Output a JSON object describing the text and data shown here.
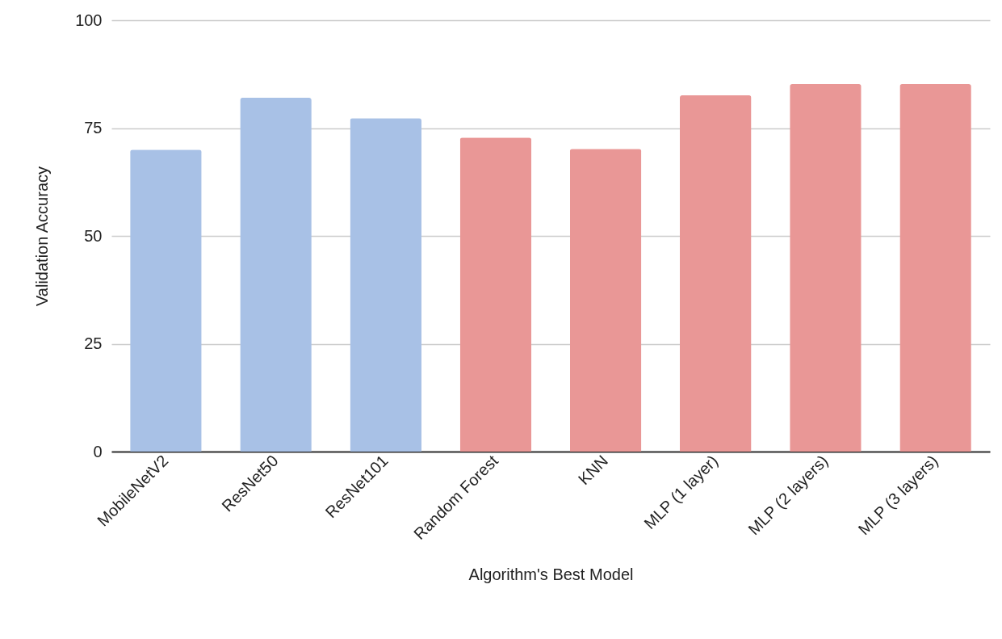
{
  "chart_data": {
    "type": "bar",
    "xlabel": "Algorithm's Best Model",
    "ylabel": "Validation Accuracy",
    "categories": [
      "MobileNetV2",
      "ResNet50",
      "ResNet101",
      "Random Forest",
      "KNN",
      "MLP (1 layer)",
      "MLP (2 layers)",
      "MLP (3 layers)"
    ],
    "values": [
      70,
      82,
      77.3,
      72.8,
      70.2,
      82.6,
      85.2,
      85.2
    ],
    "colors": [
      "#a8c1e6",
      "#a8c1e6",
      "#a8c1e6",
      "#e99796",
      "#e99796",
      "#e99796",
      "#e99796",
      "#e99796"
    ],
    "ylim": [
      0,
      100
    ],
    "yticks": [
      0,
      25,
      50,
      75,
      100
    ],
    "grid": "y"
  }
}
